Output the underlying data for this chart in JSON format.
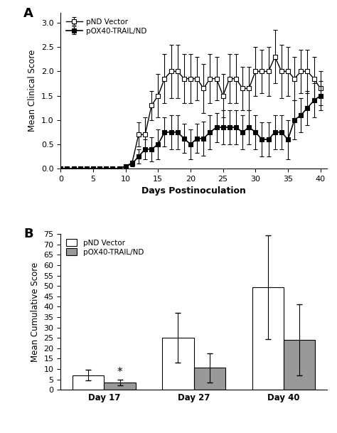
{
  "panel_a": {
    "title_label": "A",
    "xlabel": "Days Postinoculation",
    "ylabel": "Mean Clinical Score",
    "xlim": [
      0,
      41
    ],
    "ylim": [
      0,
      3.2
    ],
    "xticks": [
      0,
      5,
      10,
      15,
      20,
      25,
      30,
      35,
      40
    ],
    "yticks": [
      0.0,
      0.5,
      1.0,
      1.5,
      2.0,
      2.5,
      3.0
    ],
    "pnd_x": [
      0,
      1,
      2,
      3,
      4,
      5,
      6,
      7,
      8,
      9,
      10,
      11,
      12,
      13,
      14,
      15,
      16,
      17,
      18,
      19,
      20,
      21,
      22,
      23,
      24,
      25,
      26,
      27,
      28,
      29,
      30,
      31,
      32,
      33,
      34,
      35,
      36,
      37,
      38,
      39,
      40
    ],
    "pnd_y": [
      0.0,
      0.0,
      0.0,
      0.0,
      0.0,
      0.0,
      0.0,
      0.0,
      0.0,
      0.0,
      0.05,
      0.12,
      0.7,
      0.7,
      1.3,
      1.5,
      1.85,
      2.0,
      2.0,
      1.85,
      1.85,
      1.85,
      1.65,
      1.85,
      1.85,
      1.5,
      1.85,
      1.85,
      1.65,
      1.65,
      2.0,
      2.0,
      2.0,
      2.3,
      2.0,
      2.0,
      1.85,
      2.0,
      2.0,
      1.85,
      1.65
    ],
    "pnd_yerr": [
      0.0,
      0.0,
      0.0,
      0.0,
      0.0,
      0.0,
      0.0,
      0.0,
      0.0,
      0.0,
      0.0,
      0.05,
      0.25,
      0.35,
      0.3,
      0.45,
      0.5,
      0.55,
      0.55,
      0.5,
      0.5,
      0.45,
      0.5,
      0.5,
      0.45,
      0.45,
      0.5,
      0.5,
      0.45,
      0.45,
      0.5,
      0.45,
      0.5,
      0.55,
      0.55,
      0.5,
      0.45,
      0.45,
      0.45,
      0.45,
      0.35
    ],
    "pox_x": [
      0,
      1,
      2,
      3,
      4,
      5,
      6,
      7,
      8,
      9,
      10,
      11,
      12,
      13,
      14,
      15,
      16,
      17,
      18,
      19,
      20,
      21,
      22,
      23,
      24,
      25,
      26,
      27,
      28,
      29,
      30,
      31,
      32,
      33,
      34,
      35,
      36,
      37,
      38,
      39,
      40
    ],
    "pox_y": [
      0.0,
      0.0,
      0.0,
      0.0,
      0.0,
      0.0,
      0.0,
      0.0,
      0.0,
      0.0,
      0.05,
      0.1,
      0.25,
      0.4,
      0.4,
      0.5,
      0.75,
      0.75,
      0.75,
      0.62,
      0.5,
      0.62,
      0.62,
      0.75,
      0.85,
      0.85,
      0.85,
      0.85,
      0.75,
      0.85,
      0.75,
      0.6,
      0.6,
      0.75,
      0.75,
      0.6,
      1.0,
      1.1,
      1.25,
      1.4,
      1.5
    ],
    "pox_yerr": [
      0.0,
      0.0,
      0.0,
      0.0,
      0.0,
      0.0,
      0.0,
      0.0,
      0.0,
      0.0,
      0.0,
      0.05,
      0.15,
      0.2,
      0.25,
      0.3,
      0.3,
      0.35,
      0.35,
      0.3,
      0.3,
      0.3,
      0.35,
      0.35,
      0.3,
      0.35,
      0.35,
      0.35,
      0.35,
      0.35,
      0.35,
      0.35,
      0.35,
      0.35,
      0.35,
      0.4,
      0.4,
      0.35,
      0.35,
      0.35,
      0.3
    ],
    "legend_pnd": "pND Vector",
    "legend_pox": "pOX40-TRAIL/ND"
  },
  "panel_b": {
    "title_label": "B",
    "ylabel": "Mean Cumulative Score",
    "ylim": [
      0,
      75
    ],
    "yticks": [
      0,
      5,
      10,
      15,
      20,
      25,
      30,
      35,
      40,
      45,
      50,
      55,
      60,
      65,
      70,
      75
    ],
    "groups": [
      "Day 17",
      "Day 27",
      "Day 40"
    ],
    "pnd_values": [
      7.0,
      25.0,
      49.5
    ],
    "pnd_errors": [
      2.5,
      12.0,
      25.0
    ],
    "pox_values": [
      3.5,
      10.5,
      24.0
    ],
    "pox_errors": [
      1.5,
      7.0,
      17.0
    ],
    "pnd_color": "#ffffff",
    "pox_color": "#999999",
    "bar_edge_color": "#000000",
    "bar_width": 0.35,
    "legend_pnd": "pND Vector",
    "legend_pox": "pOX40-TRAIL/ND"
  },
  "background_color": "#ffffff",
  "figsize": [
    4.74,
    6.09
  ],
  "dpi": 100
}
